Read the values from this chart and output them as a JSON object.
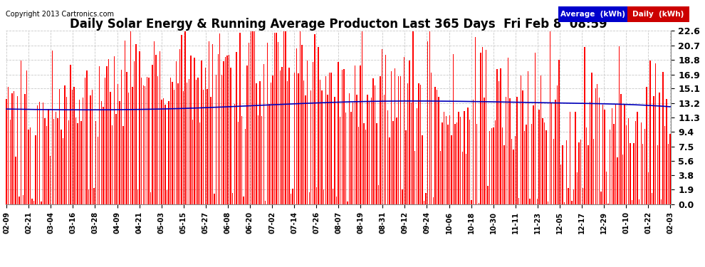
{
  "title": "Daily Solar Energy & Running Average Producton Last 365 Days  Fri Feb 8  08:59",
  "copyright": "Copyright 2013 Cartronics.com",
  "ylabel_right_ticks": [
    0.0,
    1.9,
    3.8,
    5.6,
    7.5,
    9.4,
    11.3,
    13.2,
    15.1,
    16.9,
    18.8,
    20.7,
    22.6
  ],
  "ymax": 22.6,
  "ymin": 0.0,
  "bar_color": "#FF0000",
  "line_color": "#0000BB",
  "background_color": "#FFFFFF",
  "grid_color": "#AAAAAA",
  "title_fontsize": 12,
  "legend_avg_color": "#0000CC",
  "legend_daily_color": "#CC0000",
  "legend_text_color": "#FFFFFF",
  "n_days": 365,
  "x_tick_labels": [
    "02-09",
    "02-21",
    "03-04",
    "03-16",
    "03-28",
    "04-09",
    "04-21",
    "05-03",
    "05-15",
    "05-27",
    "06-08",
    "06-20",
    "07-02",
    "07-14",
    "07-26",
    "08-07",
    "08-19",
    "08-31",
    "09-12",
    "09-24",
    "10-06",
    "10-18",
    "10-30",
    "11-11",
    "11-23",
    "12-05",
    "12-17",
    "12-29",
    "01-10",
    "01-22",
    "02-03"
  ]
}
